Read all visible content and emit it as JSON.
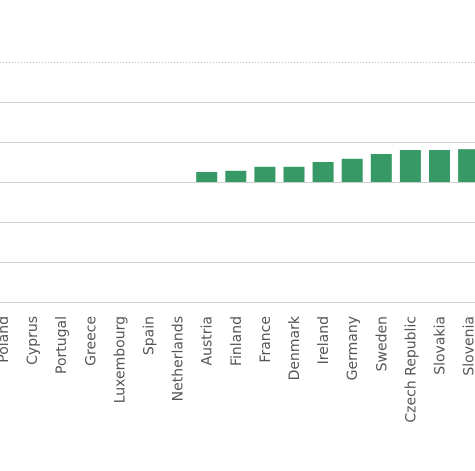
{
  "chart_data": {
    "type": "bar",
    "categories": [
      "Poland",
      "Cyprus",
      "Portugal",
      "Greece",
      "Luxembourg",
      "Spain",
      "Netherlands",
      "Austria",
      "Finland",
      "France",
      "Denmark",
      "Ireland",
      "Germany",
      "Sweden",
      "Czech Republic",
      "Slovakia",
      "Slovenia"
    ],
    "values": [
      0,
      0,
      0,
      0,
      0,
      0,
      0,
      0.25,
      0.28,
      0.38,
      0.38,
      0.5,
      0.58,
      0.7,
      0.8,
      0.8,
      0.82
    ],
    "colors": {
      "bar": "#379a66",
      "grid": "#cfcfcf",
      "label": "#555555"
    },
    "grid": true,
    "gridline_values": [
      -3,
      -2,
      -1,
      0,
      1,
      2,
      3
    ],
    "ylim": [
      -3,
      4
    ]
  }
}
